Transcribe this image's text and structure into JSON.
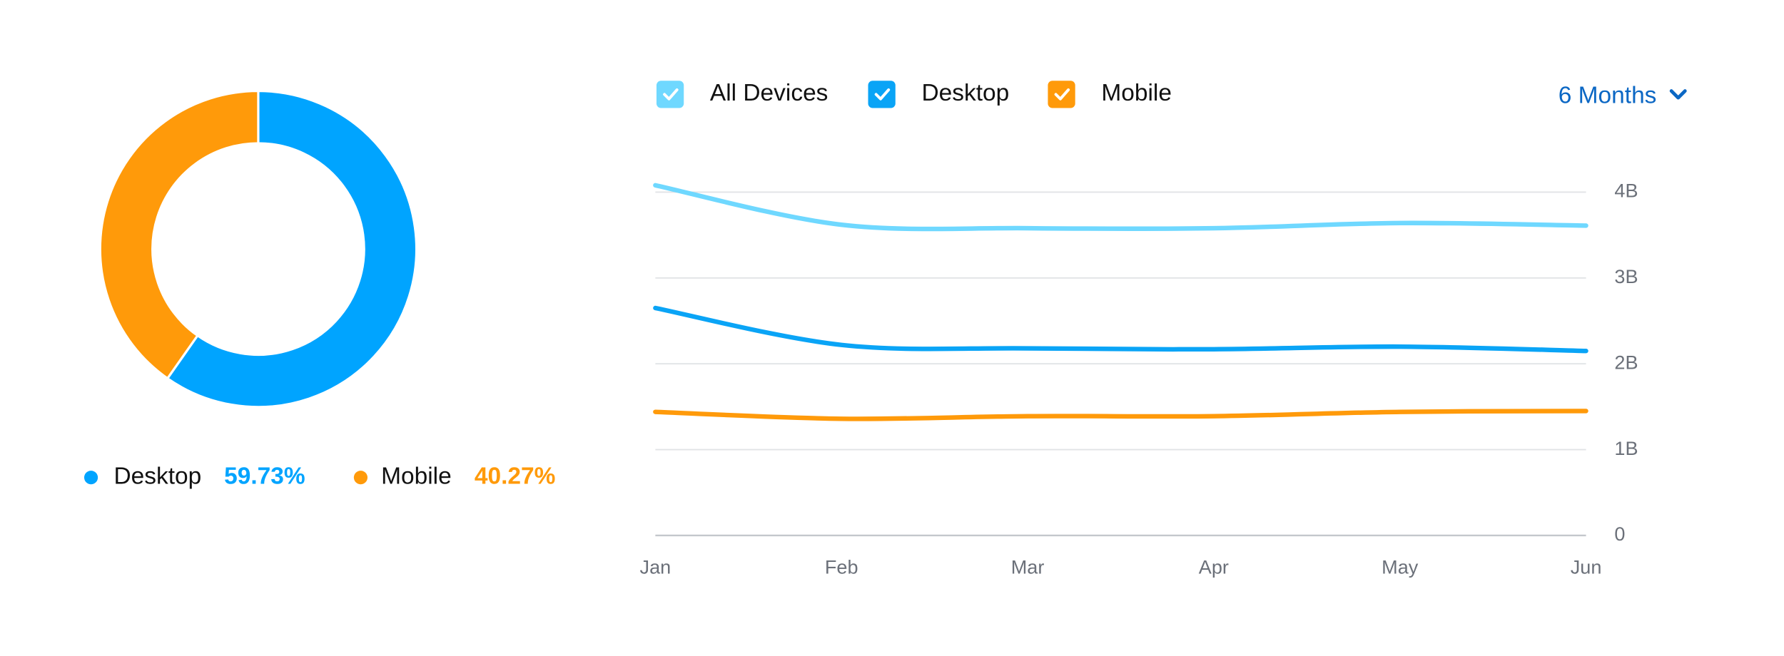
{
  "chart_data": [
    {
      "type": "pie",
      "categories": [
        "Desktop",
        "Mobile"
      ],
      "values": [
        59.73,
        40.27
      ],
      "value_labels": [
        "59.73%",
        "40.27%"
      ],
      "colors": [
        "#00a4ff",
        "#ff9a0a"
      ],
      "donut": true
    },
    {
      "type": "line",
      "categories": [
        "Jan",
        "Feb",
        "Mar",
        "Apr",
        "May",
        "Jun"
      ],
      "series": [
        {
          "name": "All Devices",
          "color": "#6fd8ff",
          "values": [
            4080000000,
            3620000000,
            3580000000,
            3580000000,
            3640000000,
            3610000000
          ]
        },
        {
          "name": "Desktop",
          "color": "#0aa4f6",
          "values": [
            2650000000,
            2220000000,
            2180000000,
            2170000000,
            2200000000,
            2150000000
          ]
        },
        {
          "name": "Mobile",
          "color": "#ff9a0a",
          "values": [
            1440000000,
            1360000000,
            1390000000,
            1390000000,
            1440000000,
            1450000000
          ]
        }
      ],
      "ylim": [
        0,
        4000000000
      ],
      "yticks": [
        0,
        {
          "value": 1000000000,
          "label": "1B"
        },
        {
          "value": 2000000000,
          "label": "2B"
        },
        {
          "value": 3000000000,
          "label": "3B"
        },
        {
          "value": 4000000000,
          "label": "4B"
        }
      ],
      "grid": true,
      "legend": "top-left",
      "period": "6 Months"
    }
  ]
}
